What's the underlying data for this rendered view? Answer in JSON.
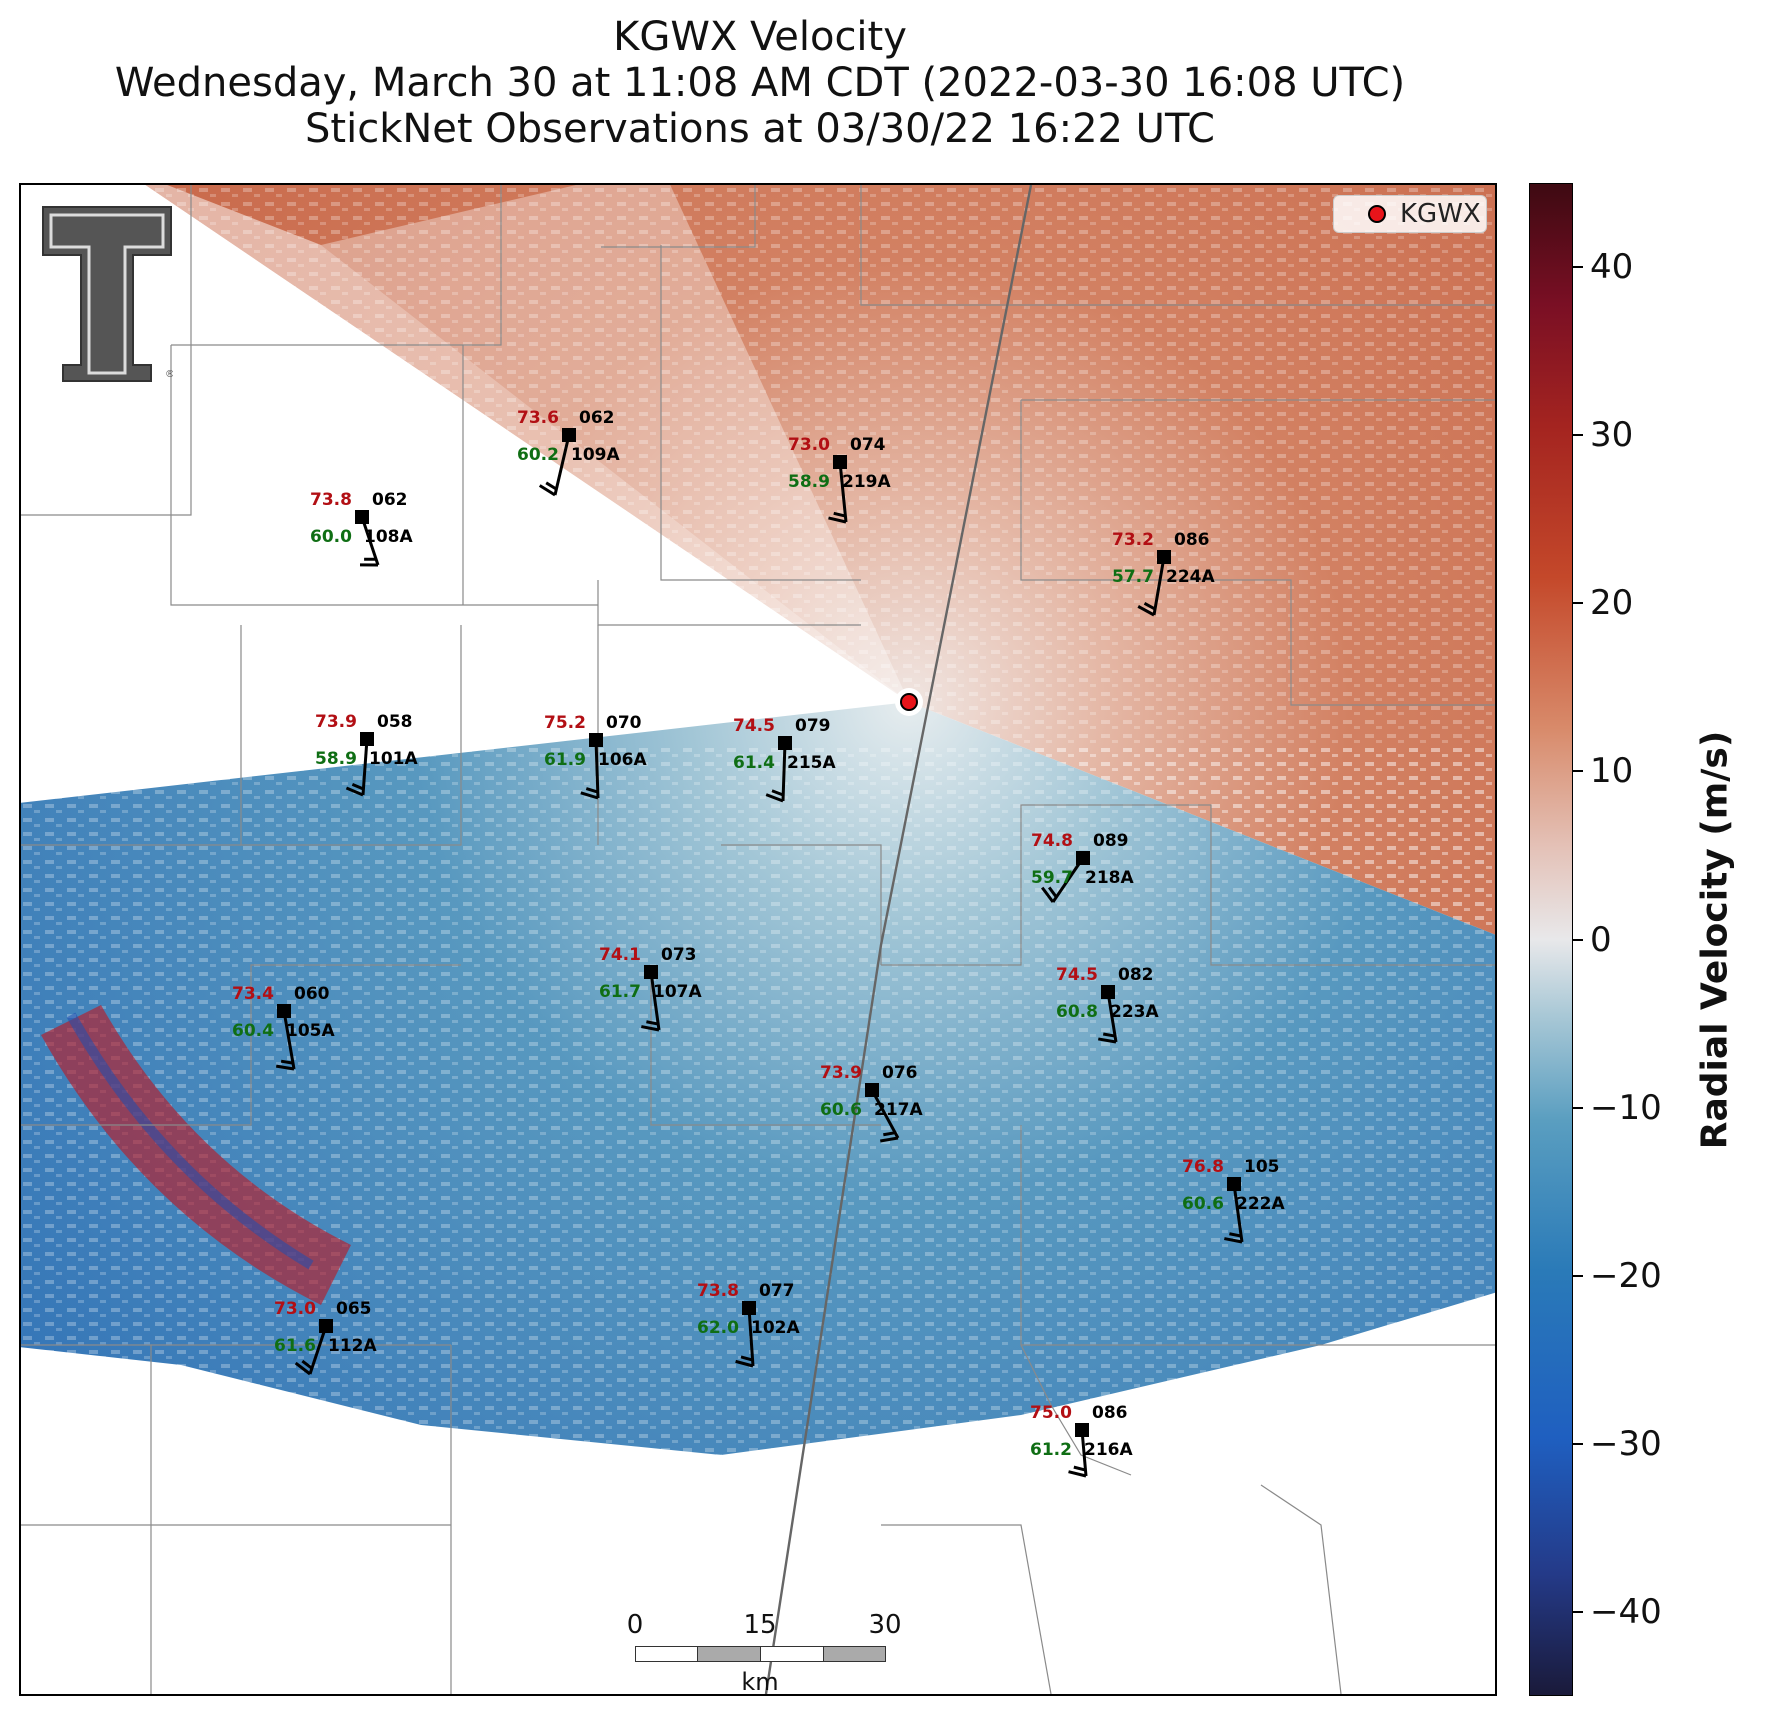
{
  "title": {
    "line1": "KGWX Velocity",
    "line2": "Wednesday, March 30 at 11:08 AM CDT (2022-03-30 16:08 UTC)",
    "line3": "StickNet Observations at 03/30/22 16:22 UTC"
  },
  "legend": {
    "label": "KGWX",
    "marker_color": "#e8141a"
  },
  "logo": {
    "name": "Texas Tech double-T logo",
    "registered_mark": "®"
  },
  "colorbar": {
    "title": "Radial Velocity (m/s)",
    "range": [
      -45,
      45
    ],
    "ticks": [
      "40",
      "30",
      "20",
      "10",
      "0",
      "−10",
      "−20",
      "−30",
      "−40"
    ],
    "tick_values": [
      40,
      30,
      20,
      10,
      0,
      -10,
      -20,
      -30,
      -40
    ],
    "colors": {
      "negative_max": "#1a1a3a",
      "negative": "#2a7ab8",
      "zero": "#e8e8ea",
      "positive": "#c4482a",
      "positive_max": "#3e0a12"
    }
  },
  "scalebar": {
    "labels": [
      "0",
      "15",
      "30"
    ],
    "unit": "km"
  },
  "stations": [
    {
      "id": "109A",
      "temp": "73.6",
      "dew": "60.2",
      "dir": "062"
    },
    {
      "id": "219A",
      "temp": "73.0",
      "dew": "58.9",
      "dir": "074"
    },
    {
      "id": "108A",
      "temp": "73.8",
      "dew": "60.0",
      "dir": "062"
    },
    {
      "id": "224A",
      "temp": "73.2",
      "dew": "57.7",
      "dir": "086"
    },
    {
      "id": "101A",
      "temp": "73.9",
      "dew": "58.9",
      "dir": "058"
    },
    {
      "id": "106A",
      "temp": "75.2",
      "dew": "61.9",
      "dir": "070"
    },
    {
      "id": "215A",
      "temp": "74.5",
      "dew": "61.4",
      "dir": "079"
    },
    {
      "id": "218A",
      "temp": "74.8",
      "dew": "59.7",
      "dir": "089"
    },
    {
      "id": "107A",
      "temp": "74.1",
      "dew": "61.7",
      "dir": "073"
    },
    {
      "id": "105A",
      "temp": "73.4",
      "dew": "60.4",
      "dir": "060"
    },
    {
      "id": "223A",
      "temp": "74.5",
      "dew": "60.8",
      "dir": "082"
    },
    {
      "id": "217A",
      "temp": "73.9",
      "dew": "60.6",
      "dir": "076"
    },
    {
      "id": "222A",
      "temp": "76.8",
      "dew": "60.6",
      "dir": "105"
    },
    {
      "id": "102A",
      "temp": "73.8",
      "dew": "62.0",
      "dir": "077"
    },
    {
      "id": "112A",
      "temp": "73.0",
      "dew": "61.6",
      "dir": "065"
    },
    {
      "id": "216A",
      "temp": "75.0",
      "dew": "61.2",
      "dir": "086"
    }
  ]
}
